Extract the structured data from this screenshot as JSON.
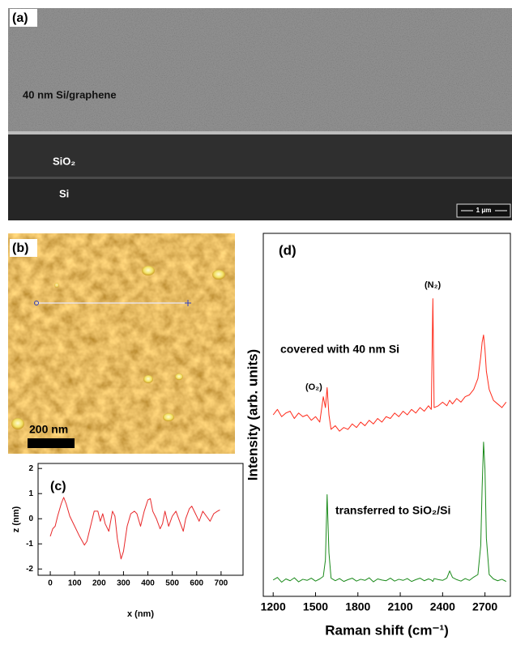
{
  "image_panels": {
    "a": {
      "label": "(a)",
      "layer_label": "40 nm Si/graphene",
      "oxide_label": "SiO₂",
      "substrate_label": "Si",
      "scale_bar": "1 μm"
    },
    "b": {
      "label": "(b)",
      "scale_bar": "200 nm"
    }
  },
  "chart_data": [
    {
      "type": "line",
      "panel_label": "(c)",
      "xlabel": "x (nm)",
      "ylabel": "z (nm)",
      "x": [
        0,
        10,
        20,
        30,
        45,
        55,
        65,
        80,
        100,
        120,
        140,
        150,
        165,
        180,
        195,
        205,
        215,
        225,
        240,
        255,
        265,
        275,
        290,
        300,
        315,
        330,
        345,
        355,
        370,
        385,
        400,
        410,
        420,
        435,
        450,
        460,
        470,
        485,
        500,
        515,
        530,
        545,
        555,
        570,
        580,
        595,
        610,
        625,
        640,
        655,
        670,
        685,
        695
      ],
      "series": [
        {
          "color": "#e8282a",
          "values": [
            -0.7,
            -0.4,
            -0.3,
            0.1,
            0.6,
            0.85,
            0.6,
            0.1,
            -0.3,
            -0.7,
            -1.05,
            -0.9,
            -0.3,
            0.3,
            0.3,
            -0.1,
            0.2,
            -0.2,
            -0.5,
            0.3,
            0.1,
            -0.8,
            -1.6,
            -1.3,
            -0.3,
            0.2,
            0.3,
            0.2,
            -0.3,
            0.3,
            0.75,
            0.8,
            0.3,
            0,
            -0.4,
            -0.2,
            0.3,
            -0.3,
            0.1,
            0.3,
            -0.1,
            -0.5,
            0,
            0.4,
            0.5,
            0.2,
            -0.1,
            0.3,
            0.1,
            -0.1,
            0.2,
            0.3,
            0.35
          ]
        }
      ],
      "xlim": [
        -50,
        790
      ],
      "ylim": [
        -2.25,
        2.2
      ],
      "xticks": [
        0,
        100,
        200,
        300,
        400,
        500,
        600,
        700
      ],
      "yticks": [
        -2,
        -1,
        0,
        1,
        2
      ]
    },
    {
      "type": "line",
      "panel_label": "(d)",
      "xlabel": "Raman shift (cm⁻¹)",
      "ylabel": "Intensity (arb. units)",
      "x": [
        1200,
        1230,
        1260,
        1290,
        1320,
        1350,
        1380,
        1410,
        1440,
        1470,
        1500,
        1530,
        1555,
        1570,
        1582,
        1595,
        1610,
        1640,
        1670,
        1700,
        1730,
        1760,
        1790,
        1820,
        1850,
        1880,
        1910,
        1940,
        1970,
        2000,
        2030,
        2060,
        2090,
        2120,
        2150,
        2180,
        2210,
        2240,
        2270,
        2300,
        2320,
        2331,
        2340,
        2370,
        2400,
        2430,
        2450,
        2470,
        2500,
        2530,
        2560,
        2590,
        2620,
        2650,
        2670,
        2680,
        2690,
        2700,
        2710,
        2730,
        2760,
        2790,
        2820,
        2850
      ],
      "series": [
        {
          "color": "#ff2a1a",
          "values": [
            50,
            51.5,
            49.5,
            50.5,
            51,
            49,
            50.5,
            49.5,
            50,
            48.5,
            49.5,
            48,
            55,
            52,
            57.5,
            50,
            46,
            47,
            45.5,
            46.5,
            46,
            47.5,
            46.5,
            48,
            47,
            48.5,
            47.5,
            49,
            48,
            49.5,
            49,
            50.5,
            49.5,
            51,
            50,
            51.5,
            50.5,
            52,
            51,
            52.5,
            51.5,
            82,
            52,
            52.5,
            53.5,
            52.5,
            54,
            53,
            54.5,
            53.5,
            55,
            55.5,
            57,
            60,
            66,
            70,
            72,
            68,
            62,
            57,
            54,
            53,
            52,
            53.5
          ]
        },
        {
          "color": "#1a8a1a",
          "values": [
            4.5,
            5.2,
            3.9,
            4.8,
            4.3,
            5.1,
            4.0,
            4.7,
            4.4,
            5.0,
            4.2,
            4.8,
            5.5,
            10,
            28,
            12,
            5,
            4.3,
            4.9,
            4.1,
            4.6,
            5.0,
            4.2,
            4.7,
            4.4,
            5.1,
            4.0,
            4.8,
            4.5,
            4.3,
            5.0,
            4.2,
            4.7,
            4.4,
            4.9,
            4.1,
            4.6,
            5.0,
            4.3,
            4.8,
            4.5,
            4.1,
            4.9,
            4.6,
            4.4,
            5.0,
            7,
            5.2,
            4.6,
            4.2,
            4.9,
            4.4,
            5.3,
            6,
            14,
            30,
            42.5,
            35,
            16,
            6,
            4.8,
            4.3,
            4.7,
            4.1
          ]
        }
      ],
      "annotations": [
        "(N₂)",
        "covered with 40 nm Si",
        "(O₂)",
        "transferred to SiO₂/Si"
      ],
      "xlim": [
        1130,
        2880
      ],
      "ylim": [
        0,
        100
      ],
      "xticks": [
        1200,
        1500,
        1800,
        2100,
        2400,
        2700
      ]
    }
  ]
}
